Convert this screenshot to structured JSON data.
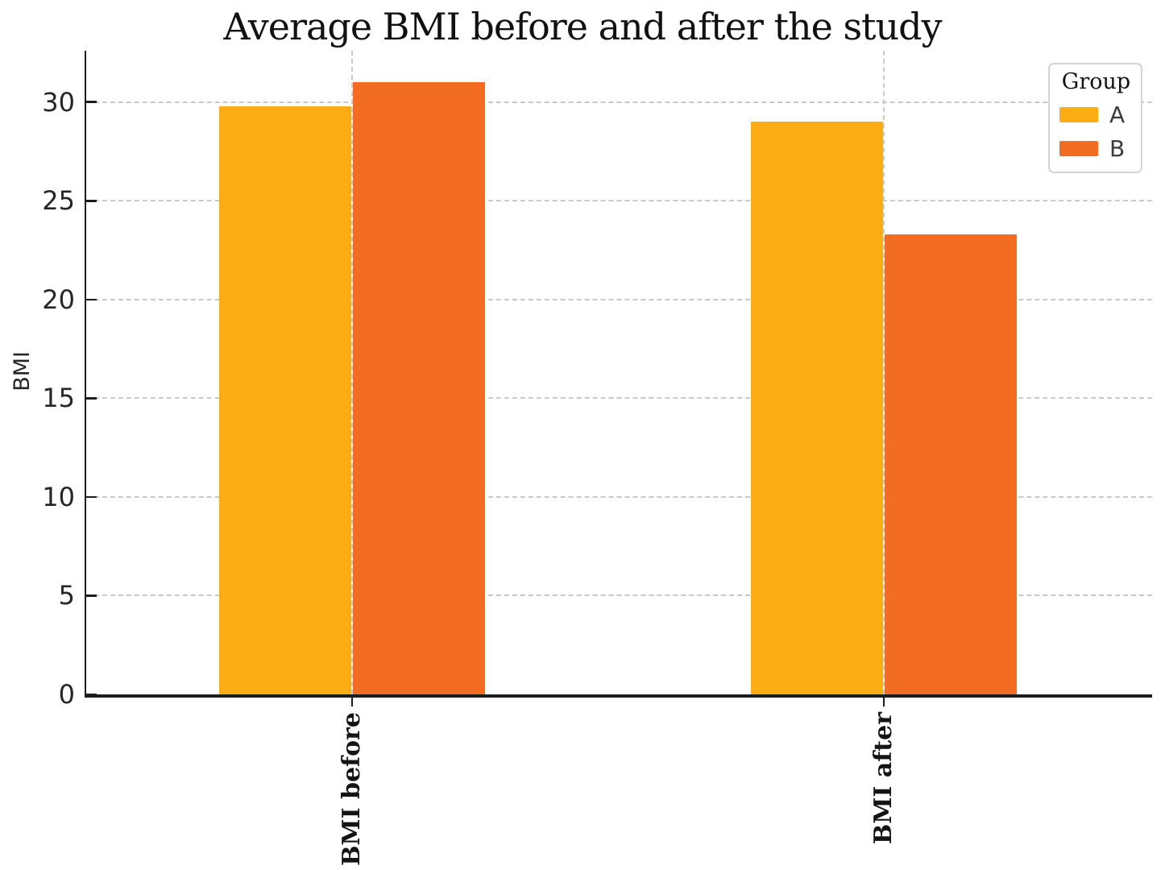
{
  "figure": {
    "title": "Average BMI before and after the study",
    "y_axis_label": "BMI"
  },
  "legend": {
    "title": "Group",
    "items": [
      {
        "label": "A",
        "color": "#FCAD13"
      },
      {
        "label": "B",
        "color": "#F26C22"
      }
    ]
  },
  "chart_data": {
    "type": "bar",
    "title": "Average BMI before and after the study",
    "categories": [
      "BMI before",
      "BMI after"
    ],
    "series": [
      {
        "name": "A",
        "color": "#FCAD13",
        "values": [
          29.8,
          29.0
        ]
      },
      {
        "name": "B",
        "color": "#F26C22",
        "values": [
          31.0,
          23.3
        ]
      }
    ],
    "xlabel": "",
    "ylabel": "BMI",
    "ylim": [
      0,
      32.6
    ],
    "yticks": [
      0,
      5,
      10,
      15,
      20,
      25,
      30
    ],
    "grid": "dashed",
    "legend_title": "Group",
    "legend_position": "upper right"
  },
  "colors": {
    "grid": "#c9c9c9",
    "spine": "#1d1d1d",
    "title_text": "#111111",
    "tick_text": "#262626"
  }
}
